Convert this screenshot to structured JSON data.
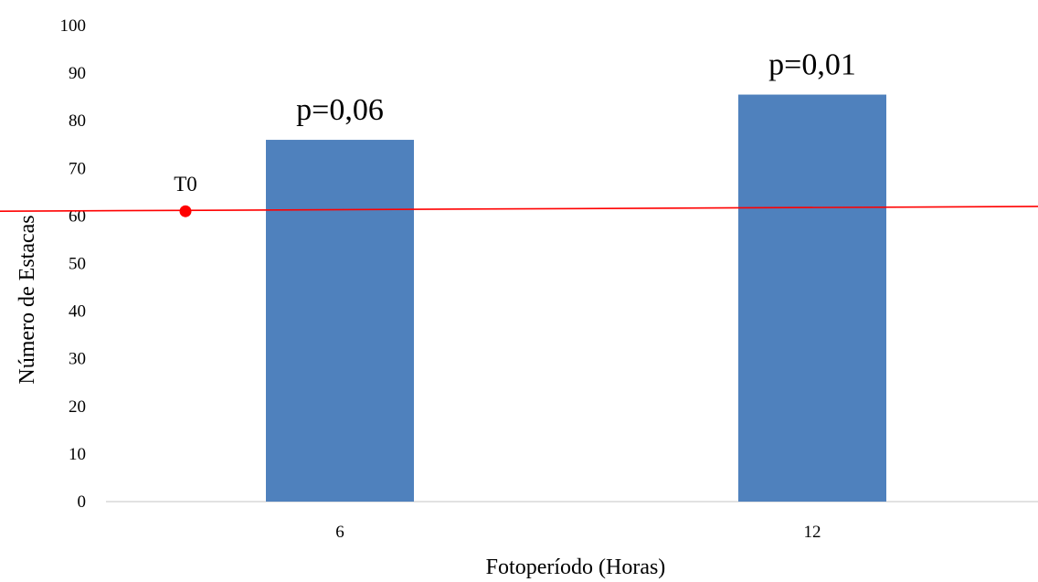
{
  "chart_data": {
    "type": "bar",
    "title": "",
    "xlabel": "Fotoperíodo (Horas)",
    "ylabel": "Número de Estacas",
    "ylim": [
      0,
      100
    ],
    "yticks": [
      0,
      10,
      20,
      30,
      40,
      50,
      60,
      70,
      80,
      90,
      100
    ],
    "categories": [
      "6",
      "12"
    ],
    "values": [
      76,
      85.5
    ],
    "bar_labels": [
      "p=0,06",
      "p=0,01"
    ],
    "bar_color": "#4f81bd",
    "grid": false,
    "reference": {
      "label": "T0",
      "value": 61,
      "end_value": 62,
      "line_color": "#ff0000",
      "marker_color": "#ff0000"
    }
  }
}
